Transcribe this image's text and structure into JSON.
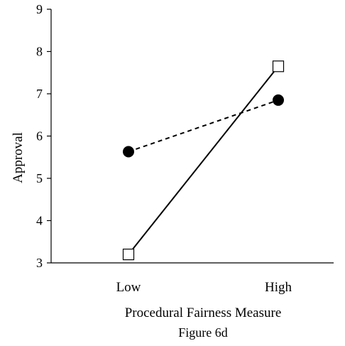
{
  "chart_data": {
    "type": "line",
    "categories": [
      "Low",
      "High"
    ],
    "series": [
      {
        "marker": "open-square",
        "line_style": "solid",
        "values": [
          3.2,
          7.65
        ]
      },
      {
        "marker": "filled-circle",
        "line_style": "dashed",
        "values": [
          5.63,
          6.85
        ]
      }
    ],
    "ylabel": "Approval",
    "xlabel": "Procedural Fairness Measure",
    "caption": "Figure 6d",
    "ylim": [
      3,
      9
    ],
    "yticks": [
      3,
      4,
      5,
      6,
      7,
      8,
      9
    ],
    "grid": false,
    "legend": "none",
    "colors": {
      "line": "#000000",
      "marker_fill": "#000000",
      "open_marker_fill": "#ffffff"
    }
  }
}
